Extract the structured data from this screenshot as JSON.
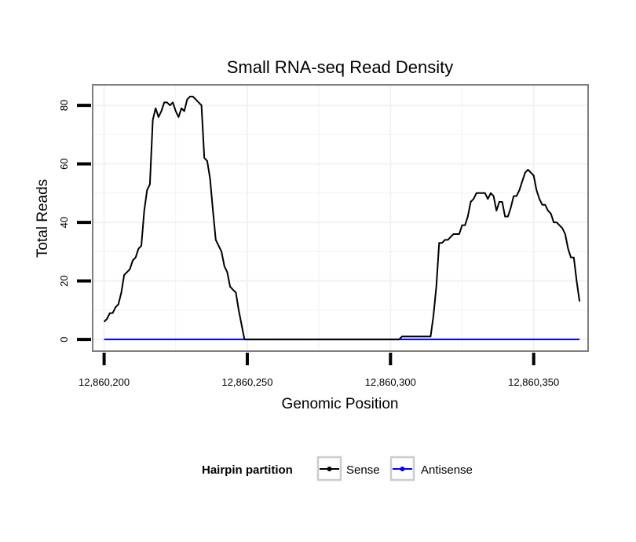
{
  "chart_data": {
    "type": "line",
    "title": "Small RNA-seq Read Density",
    "xlabel": "Genomic Position",
    "ylabel": "Total Reads",
    "xlim": [
      12860196,
      12860369
    ],
    "ylim": [
      -4,
      87
    ],
    "x_ticks": [
      {
        "value": 12860200,
        "label": "12,860,200"
      },
      {
        "value": 12860250,
        "label": "12,860,250"
      },
      {
        "value": 12860300,
        "label": "12,860,300"
      },
      {
        "value": 12860350,
        "label": "12,860,350"
      }
    ],
    "y_ticks": [
      {
        "value": 0,
        "label": "0"
      },
      {
        "value": 20,
        "label": "20"
      },
      {
        "value": 40,
        "label": "40"
      },
      {
        "value": 60,
        "label": "60"
      },
      {
        "value": 80,
        "label": "80"
      }
    ],
    "grid": true,
    "legend": {
      "title": "Hairpin partition",
      "position": "bottom",
      "entries": [
        {
          "name": "Sense",
          "color": "#000000"
        },
        {
          "name": "Antisense",
          "color": "#0000ff"
        }
      ]
    },
    "series": [
      {
        "name": "Sense",
        "color": "#000000",
        "points": [
          [
            12860200,
            6
          ],
          [
            12860201,
            7
          ],
          [
            12860202,
            9
          ],
          [
            12860203,
            9
          ],
          [
            12860204,
            11
          ],
          [
            12860205,
            12
          ],
          [
            12860206,
            16
          ],
          [
            12860207,
            22
          ],
          [
            12860208,
            23
          ],
          [
            12860209,
            24
          ],
          [
            12860210,
            27
          ],
          [
            12860211,
            28
          ],
          [
            12860212,
            31
          ],
          [
            12860213,
            32
          ],
          [
            12860214,
            44
          ],
          [
            12860215,
            51
          ],
          [
            12860216,
            53
          ],
          [
            12860217,
            75
          ],
          [
            12860218,
            79
          ],
          [
            12860219,
            76
          ],
          [
            12860220,
            78
          ],
          [
            12860221,
            81
          ],
          [
            12860222,
            81
          ],
          [
            12860223,
            80
          ],
          [
            12860224,
            81
          ],
          [
            12860225,
            78
          ],
          [
            12860226,
            76
          ],
          [
            12860227,
            79
          ],
          [
            12860228,
            78
          ],
          [
            12860229,
            82
          ],
          [
            12860230,
            83
          ],
          [
            12860231,
            83
          ],
          [
            12860232,
            82
          ],
          [
            12860233,
            81
          ],
          [
            12860234,
            80
          ],
          [
            12860235,
            62
          ],
          [
            12860236,
            61
          ],
          [
            12860237,
            55
          ],
          [
            12860238,
            44
          ],
          [
            12860239,
            34
          ],
          [
            12860240,
            32
          ],
          [
            12860241,
            30
          ],
          [
            12860242,
            25
          ],
          [
            12860243,
            23
          ],
          [
            12860244,
            18
          ],
          [
            12860245,
            17
          ],
          [
            12860246,
            16
          ],
          [
            12860247,
            10
          ],
          [
            12860248,
            5
          ],
          [
            12860249,
            0
          ],
          [
            12860303,
            0
          ],
          [
            12860304,
            1
          ],
          [
            12860314,
            1
          ],
          [
            12860315,
            8
          ],
          [
            12860316,
            18
          ],
          [
            12860317,
            33
          ],
          [
            12860318,
            33
          ],
          [
            12860319,
            34
          ],
          [
            12860320,
            34
          ],
          [
            12860321,
            35
          ],
          [
            12860322,
            36
          ],
          [
            12860323,
            36
          ],
          [
            12860324,
            36
          ],
          [
            12860325,
            39
          ],
          [
            12860326,
            39
          ],
          [
            12860327,
            42
          ],
          [
            12860328,
            47
          ],
          [
            12860329,
            48
          ],
          [
            12860330,
            50
          ],
          [
            12860331,
            50
          ],
          [
            12860332,
            50
          ],
          [
            12860333,
            50
          ],
          [
            12860334,
            48
          ],
          [
            12860335,
            50
          ],
          [
            12860336,
            49
          ],
          [
            12860337,
            44
          ],
          [
            12860338,
            47
          ],
          [
            12860339,
            47
          ],
          [
            12860340,
            42
          ],
          [
            12860341,
            42
          ],
          [
            12860342,
            45
          ],
          [
            12860343,
            49
          ],
          [
            12860344,
            49
          ],
          [
            12860345,
            51
          ],
          [
            12860346,
            54
          ],
          [
            12860347,
            57
          ],
          [
            12860348,
            58
          ],
          [
            12860349,
            57
          ],
          [
            12860350,
            56
          ],
          [
            12860351,
            51
          ],
          [
            12860352,
            48
          ],
          [
            12860353,
            46
          ],
          [
            12860354,
            46
          ],
          [
            12860355,
            44
          ],
          [
            12860356,
            43
          ],
          [
            12860357,
            40
          ],
          [
            12860358,
            40
          ],
          [
            12860359,
            39
          ],
          [
            12860360,
            38
          ],
          [
            12860361,
            36
          ],
          [
            12860362,
            31
          ],
          [
            12860363,
            28
          ],
          [
            12860364,
            28
          ],
          [
            12860365,
            20
          ],
          [
            12860366,
            13
          ]
        ]
      },
      {
        "name": "Antisense",
        "color": "#0000ff",
        "points": [
          [
            12860200,
            0
          ],
          [
            12860366,
            0
          ]
        ]
      }
    ]
  }
}
